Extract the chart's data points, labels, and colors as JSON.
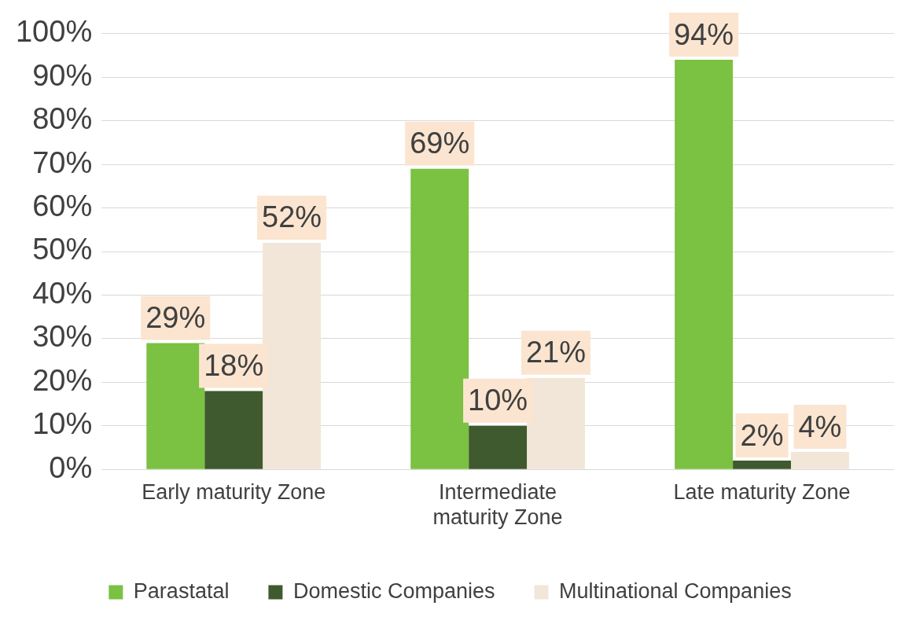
{
  "chart_data": {
    "type": "bar",
    "categories": [
      "Early maturity Zone",
      "Intermediate maturity Zone",
      "Late maturity Zone"
    ],
    "series": [
      {
        "name": "Parastatal",
        "color": "#7bc142",
        "values": [
          29,
          69,
          94
        ],
        "value_labels": [
          "29%",
          "69%",
          "94%"
        ]
      },
      {
        "name": "Domestic Companies",
        "color": "#3f5a2e",
        "values": [
          18,
          10,
          2
        ],
        "value_labels": [
          "18%",
          "10%",
          "2%"
        ]
      },
      {
        "name": "Multinational Companies",
        "color": "#f2e6d8",
        "values": [
          52,
          21,
          4
        ],
        "value_labels": [
          "52%",
          "21%",
          "4%"
        ]
      }
    ],
    "ylim": [
      0,
      100
    ],
    "yticks": [
      {
        "value": 0,
        "label": "0%"
      },
      {
        "value": 10,
        "label": "10%"
      },
      {
        "value": 20,
        "label": "20%"
      },
      {
        "value": 30,
        "label": "30%"
      },
      {
        "value": 40,
        "label": "40%"
      },
      {
        "value": 50,
        "label": "50%"
      },
      {
        "value": 60,
        "label": "60%"
      },
      {
        "value": 70,
        "label": "70%"
      },
      {
        "value": 80,
        "label": "80%"
      },
      {
        "value": 90,
        "label": "90%"
      },
      {
        "value": 100,
        "label": "100%"
      }
    ],
    "grid": "y",
    "legend": "bottom"
  }
}
